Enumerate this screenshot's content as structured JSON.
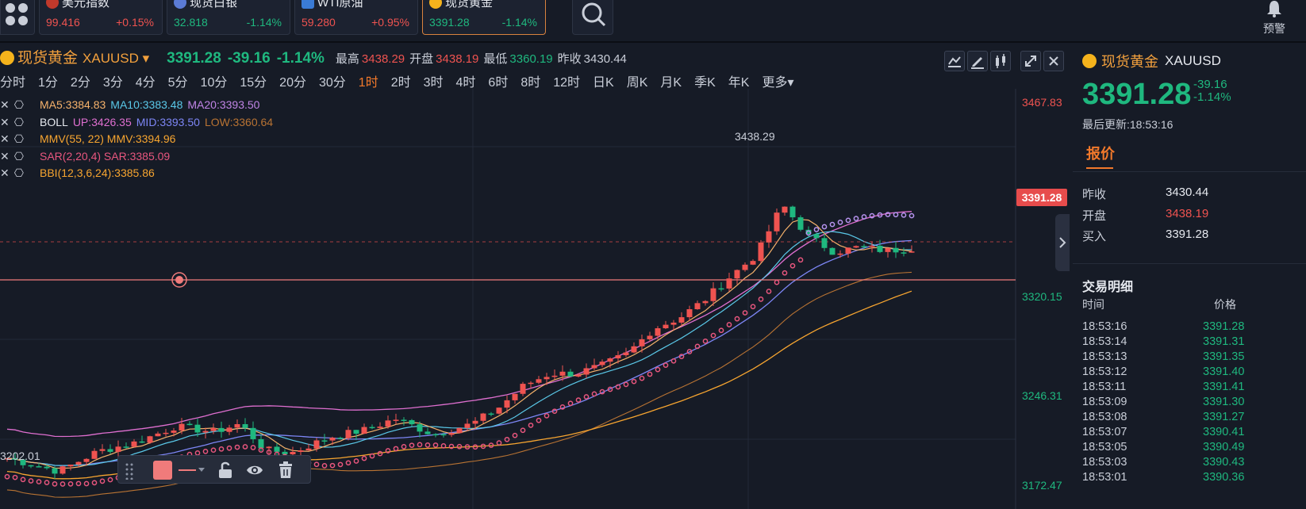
{
  "tickers": [
    {
      "name": "美元指数",
      "price": "99.416",
      "change": "+0.15%",
      "dir": "up"
    },
    {
      "name": "现货白银",
      "price": "32.818",
      "change": "-1.14%",
      "dir": "down"
    },
    {
      "name": "WTI原油",
      "price": "59.280",
      "change": "+0.95%",
      "dir": "up"
    },
    {
      "name": "现货黄金",
      "price": "3391.28",
      "change": "-1.14%",
      "dir": "down"
    }
  ],
  "alert_label": "预警",
  "header": {
    "name": "现货黄金",
    "symbol": "XAUUSD",
    "price": "3391.28",
    "change": "-39.16",
    "change_pct": "-1.14%",
    "high_label": "最高",
    "high": "3438.29",
    "open_label": "开盘",
    "open": "3438.19",
    "low_label": "最低",
    "low": "3360.19",
    "prev_label": "昨收",
    "prev": "3430.44"
  },
  "periods": [
    "分时",
    "1分",
    "2分",
    "3分",
    "4分",
    "5分",
    "10分",
    "15分",
    "20分",
    "30分",
    "1时",
    "2时",
    "3时",
    "4时",
    "6时",
    "8时",
    "12时",
    "日K",
    "周K",
    "月K",
    "季K",
    "年K",
    "更多"
  ],
  "active_period": "1时",
  "indicators": {
    "ma5": "MA5:3384.83",
    "ma10": "MA10:3383.48",
    "ma20": "MA20:3393.50",
    "boll": "BOLL",
    "boll_up": "UP:3426.35",
    "boll_mid": "MID:3393.50",
    "boll_low": "LOW:3360.64",
    "mmv": "MMV(55, 22) MMV:3394.96",
    "sar": "SAR(2,20,4) SAR:3385.09",
    "bbi": "BBI(12,3,6,24):3385.86"
  },
  "yaxis": [
    "3467.83",
    "3391.28",
    "3320.15",
    "3246.31",
    "3172.47"
  ],
  "hi_mark": "3438.29",
  "lo_mark": "3202.01",
  "colors": {
    "up": "#ef5350",
    "down": "#1fb87f",
    "accent": "#f2792b",
    "gold": "#f2a03d"
  },
  "right_panel": {
    "name": "现货黄金",
    "symbol": "XAUUSD",
    "price": "3391.28",
    "change": "-39.16",
    "change_pct": "-1.14%",
    "updated": "最后更新:18:53:16",
    "tab": "报价",
    "quotes": [
      {
        "label": "昨收",
        "value": "3430.44"
      },
      {
        "label": "开盘",
        "value": "3438.19"
      },
      {
        "label": "买入",
        "value": "3391.28"
      }
    ],
    "trades_title": "交易明细",
    "trades_time_hdr": "时间",
    "trades_price_hdr": "价格",
    "trades": [
      {
        "time": "18:53:16",
        "price": "3391.28"
      },
      {
        "time": "18:53:14",
        "price": "3391.31"
      },
      {
        "time": "18:53:13",
        "price": "3391.35"
      },
      {
        "time": "18:53:12",
        "price": "3391.40"
      },
      {
        "time": "18:53:11",
        "price": "3391.41"
      },
      {
        "time": "18:53:09",
        "price": "3391.30"
      },
      {
        "time": "18:53:08",
        "price": "3391.27"
      },
      {
        "time": "18:53:07",
        "price": "3390.41"
      },
      {
        "time": "18:53:05",
        "price": "3390.49"
      },
      {
        "time": "18:53:03",
        "price": "3390.43"
      },
      {
        "time": "18:53:01",
        "price": "3390.36"
      }
    ]
  }
}
